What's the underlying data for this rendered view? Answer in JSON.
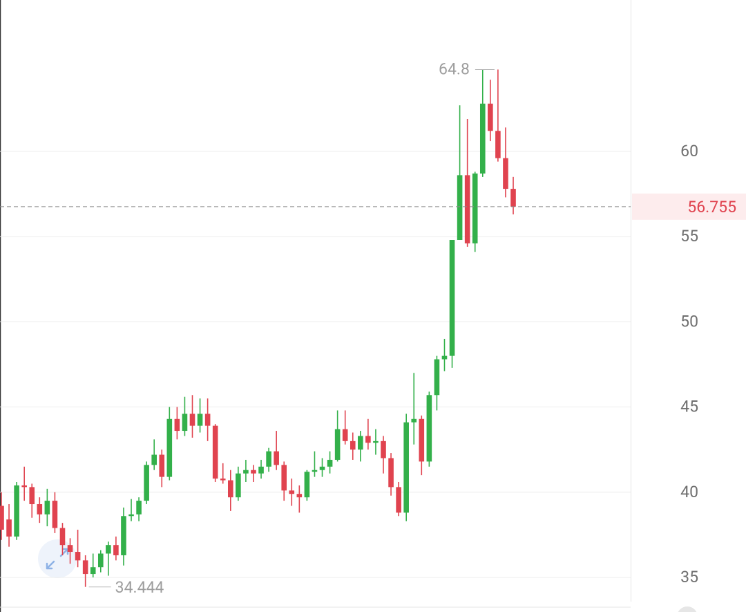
{
  "chart_data": {
    "type": "candlestick",
    "up_color": "#33b04a",
    "down_color": "#e0434f",
    "ylim": [
      33.58,
      68.88
    ],
    "yticks": [
      35,
      40,
      45,
      50,
      55,
      60
    ],
    "grid": true,
    "open": [
      39.2,
      38.4,
      37.4,
      40.4,
      40.3,
      39.3,
      38.7,
      39.5,
      37.9,
      36.9,
      36.5,
      36.0,
      35.2,
      35.6,
      36.4,
      36.9,
      36.3,
      38.6,
      38.7,
      39.5,
      41.6,
      42.2,
      40.9,
      44.3,
      43.6,
      44.6,
      43.9,
      44.6,
      43.9,
      40.8,
      40.7,
      39.7,
      41.1,
      41.3,
      41.1,
      41.5,
      42.4,
      41.6,
      40.1,
      39.9,
      39.7,
      41.2,
      41.3,
      41.5,
      41.9,
      43.7,
      43.0,
      42.5,
      43.3,
      42.9,
      43.0,
      42.0,
      40.3,
      38.8,
      44.1,
      44.3,
      41.8,
      45.7,
      47.8,
      48.0,
      54.8,
      58.6,
      54.6,
      58.7,
      62.8,
      61.2,
      59.6,
      57.8
    ],
    "high": [
      40.0,
      39.3,
      40.6,
      41.5,
      40.5,
      39.7,
      40.2,
      40.0,
      38.2,
      37.3,
      37.8,
      36.3,
      36.4,
      36.6,
      37.1,
      37.4,
      39.1,
      39.6,
      39.7,
      41.8,
      43.1,
      42.5,
      45.0,
      45.0,
      45.6,
      45.7,
      45.5,
      45.5,
      44.0,
      41.7,
      41.3,
      41.5,
      41.9,
      41.6,
      41.9,
      42.6,
      43.6,
      41.8,
      40.8,
      40.4,
      41.3,
      42.4,
      42.0,
      42.4,
      44.8,
      44.8,
      43.5,
      43.6,
      44.3,
      43.7,
      43.3,
      42.3,
      40.6,
      44.6,
      47.0,
      44.5,
      45.9,
      48.0,
      49.0,
      54.8,
      62.7,
      61.9,
      58.8,
      64.795,
      64.2,
      64.8,
      61.4,
      58.5
    ],
    "low": [
      37.2,
      36.8,
      37.2,
      39.5,
      38.5,
      38.2,
      38.0,
      37.6,
      36.3,
      35.8,
      35.6,
      34.444,
      35.0,
      35.3,
      35.1,
      36.0,
      35.7,
      38.3,
      38.3,
      39.3,
      41.3,
      40.3,
      40.7,
      43.1,
      43.3,
      43.2,
      43.5,
      43.0,
      40.6,
      40.5,
      38.9,
      39.5,
      40.6,
      40.6,
      40.8,
      41.2,
      41.3,
      39.5,
      39.2,
      38.8,
      39.5,
      40.9,
      40.9,
      41.1,
      41.8,
      42.8,
      41.9,
      41.8,
      42.5,
      42.2,
      41.1,
      39.8,
      38.6,
      38.3,
      42.8,
      41.0,
      41.5,
      44.8,
      47.1,
      47.3,
      54.8,
      54.4,
      54.1,
      58.5,
      60.6,
      59.4,
      57.3,
      56.3
    ],
    "close": [
      37.8,
      37.4,
      40.4,
      40.3,
      39.3,
      38.7,
      39.5,
      37.9,
      36.9,
      36.5,
      36.0,
      35.2,
      35.6,
      36.4,
      36.9,
      36.3,
      38.6,
      38.7,
      39.5,
      41.6,
      42.2,
      40.9,
      44.3,
      43.6,
      44.6,
      43.9,
      44.6,
      43.9,
      40.8,
      40.7,
      39.7,
      41.1,
      41.3,
      41.1,
      41.5,
      42.4,
      41.6,
      40.1,
      39.9,
      39.7,
      41.2,
      41.3,
      41.5,
      41.9,
      43.7,
      43.0,
      42.5,
      43.3,
      42.9,
      43.0,
      42.0,
      40.3,
      38.8,
      44.1,
      44.3,
      41.8,
      45.7,
      47.8,
      48.0,
      54.8,
      58.6,
      54.6,
      58.7,
      62.8,
      61.2,
      59.6,
      57.8,
      56.755
    ]
  }
}
